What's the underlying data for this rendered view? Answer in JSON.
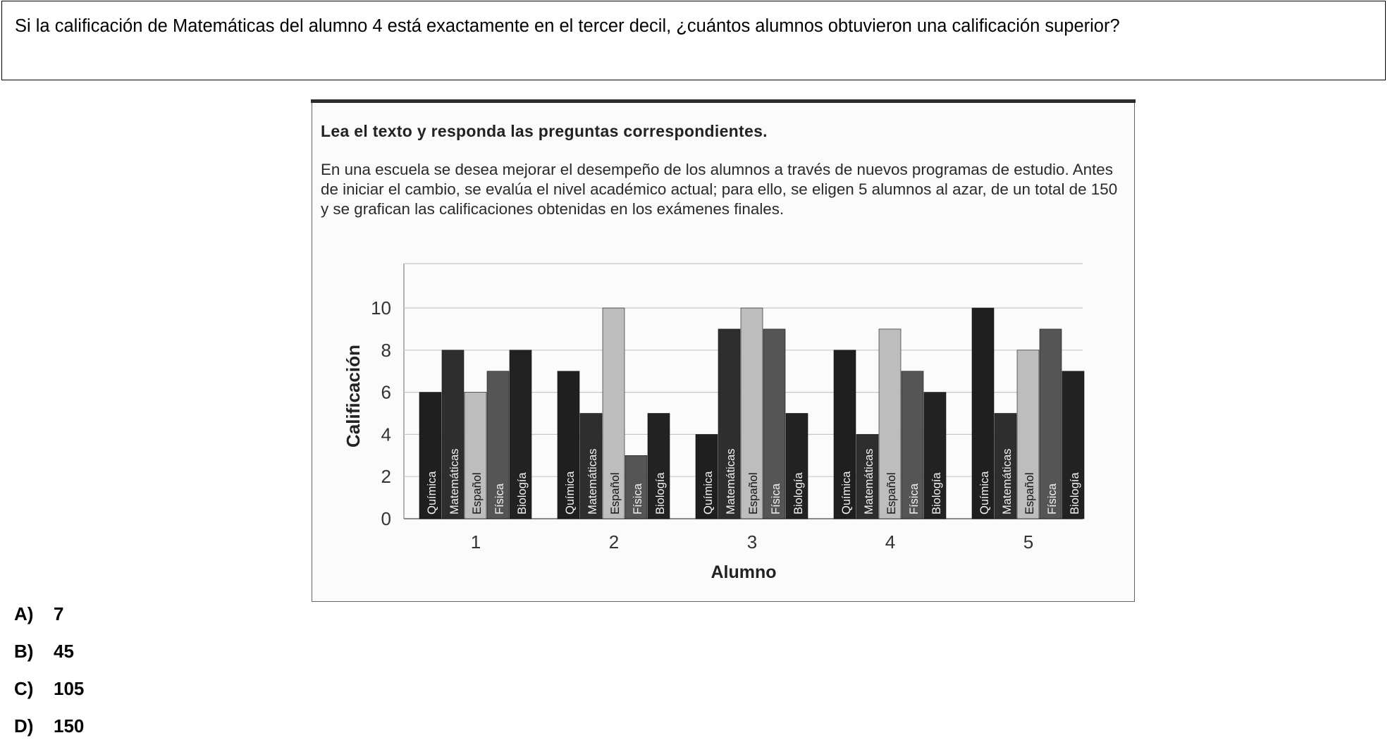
{
  "question": {
    "text": "Si la calificación de Matemáticas del alumno 4 está exactamente en el tercer decil, ¿cuántos alumnos obtuvieron una calificación superior?"
  },
  "figure": {
    "heading": "Lea el texto y responda las preguntas correspondientes.",
    "paragraph": "En una escuela se desea mejorar el desempeño de los alumnos a través de nuevos programas de estudio. Antes de iniciar el cambio, se evalúa el nivel académico actual; para ello, se eligen 5 alumnos al azar, de un total de 150 y se grafican las calificaciones obtenidas en los exámenes finales."
  },
  "chart_data": {
    "type": "bar",
    "xlabel": "Alumno",
    "ylabel": "Calificación",
    "ylim": [
      0,
      12
    ],
    "yticks": [
      0,
      2,
      4,
      6,
      8,
      10
    ],
    "categories": [
      "1",
      "2",
      "3",
      "4",
      "5"
    ],
    "grid": true,
    "legend": "none (subject labels inside bars)",
    "series": [
      {
        "name": "Química",
        "color": "#1f1f1f",
        "values": [
          6,
          7,
          4,
          8,
          10
        ]
      },
      {
        "name": "Matemáticas",
        "color": "#2e2e2e",
        "values": [
          8,
          5,
          9,
          4,
          5
        ]
      },
      {
        "name": "Español",
        "color": "#bdbdbd",
        "values": [
          6,
          10,
          10,
          9,
          8
        ]
      },
      {
        "name": "Física",
        "color": "#555555",
        "values": [
          7,
          3,
          9,
          7,
          9
        ]
      },
      {
        "name": "Biología",
        "color": "#222222",
        "values": [
          8,
          5,
          5,
          6,
          7
        ]
      }
    ]
  },
  "options": [
    {
      "letter": "A)",
      "value": "7"
    },
    {
      "letter": "B)",
      "value": "45"
    },
    {
      "letter": "C)",
      "value": "105"
    },
    {
      "letter": "D)",
      "value": "150"
    }
  ]
}
